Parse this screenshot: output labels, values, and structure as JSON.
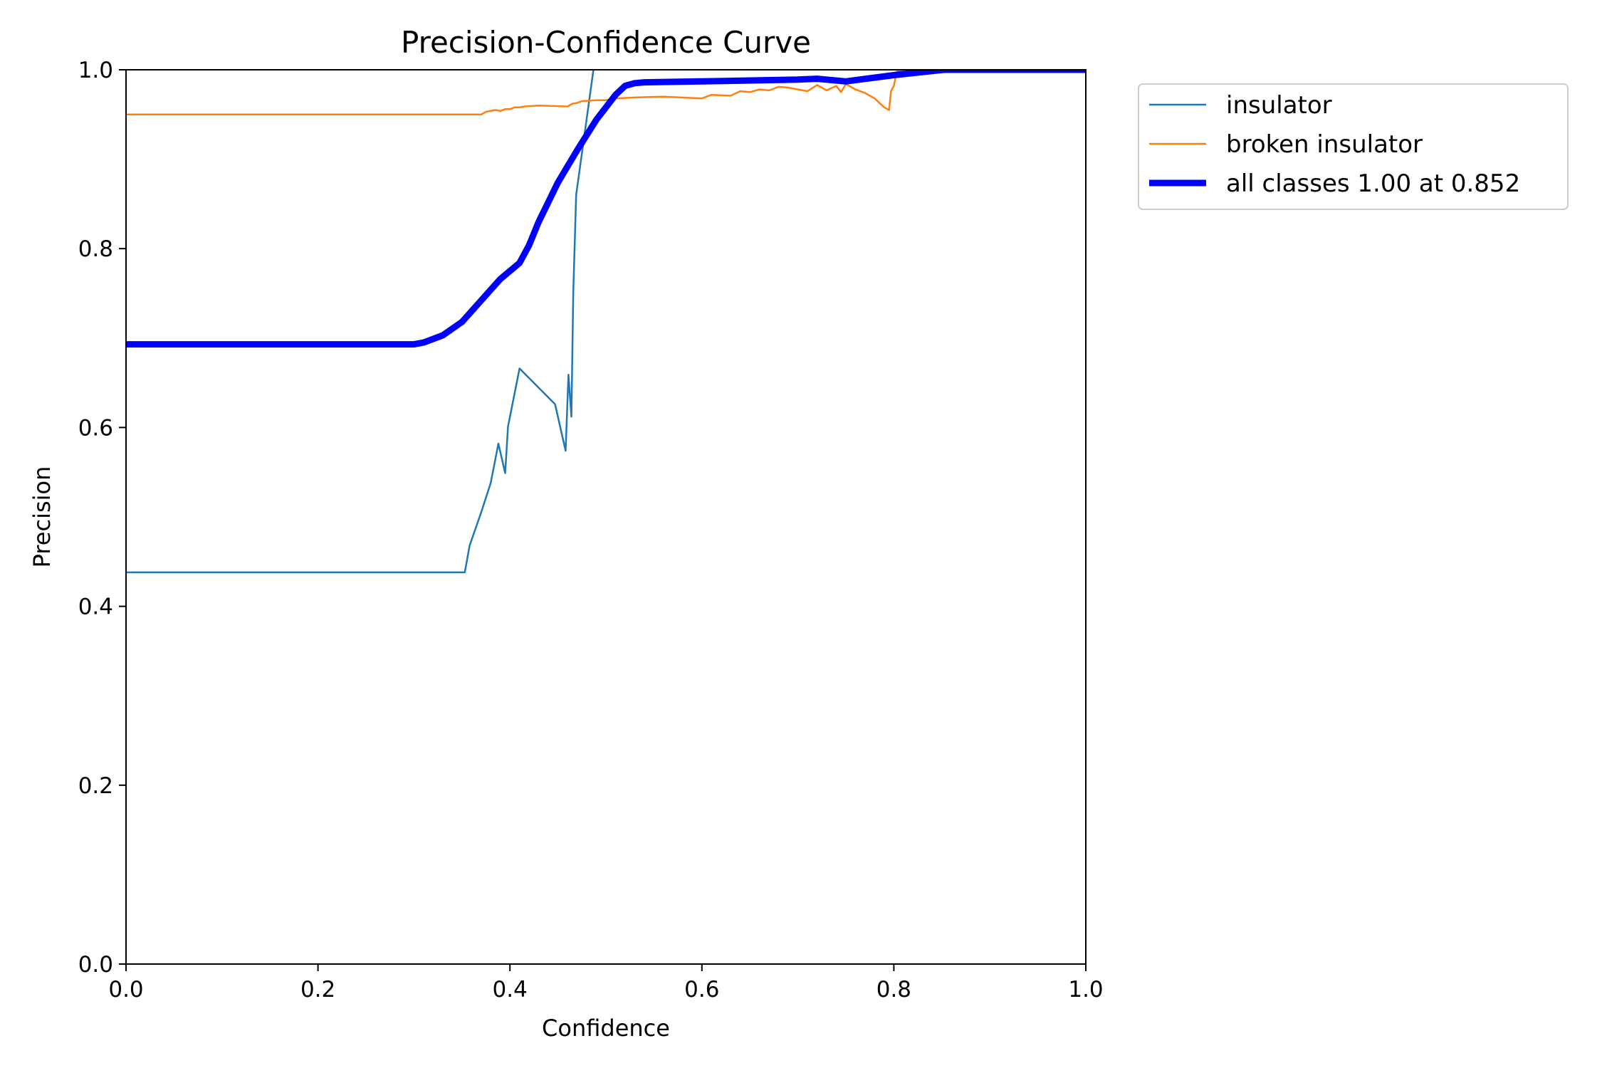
{
  "chart_data": {
    "type": "line",
    "title": "Precision-Confidence Curve",
    "xlabel": "Confidence",
    "ylabel": "Precision",
    "xlim": [
      0,
      1
    ],
    "ylim": [
      0,
      1
    ],
    "xticks": [
      "0.0",
      "0.2",
      "0.4",
      "0.6",
      "0.8",
      "1.0"
    ],
    "yticks": [
      "0.0",
      "0.2",
      "0.4",
      "0.6",
      "0.8",
      "1.0"
    ],
    "grid": false,
    "legend_position": "outside top-right",
    "series": [
      {
        "name": "insulator",
        "color": "#1f77b4",
        "style": "thin",
        "x": [
          0.0,
          0.353,
          0.358,
          0.37,
          0.38,
          0.388,
          0.395,
          0.398,
          0.41,
          0.447,
          0.458,
          0.461,
          0.464,
          0.466,
          0.469,
          0.487
        ],
        "y": [
          0.438,
          0.438,
          0.468,
          0.505,
          0.538,
          0.582,
          0.549,
          0.601,
          0.666,
          0.626,
          0.574,
          0.659,
          0.612,
          0.752,
          0.86,
          1.0
        ]
      },
      {
        "name": "broken insulator",
        "color": "#ff7f0e",
        "style": "thin",
        "x": [
          0.0,
          0.37,
          0.375,
          0.385,
          0.39,
          0.395,
          0.4,
          0.405,
          0.41,
          0.415,
          0.43,
          0.46,
          0.465,
          0.47,
          0.475,
          0.49,
          0.5,
          0.51,
          0.53,
          0.56,
          0.6,
          0.61,
          0.63,
          0.64,
          0.65,
          0.66,
          0.67,
          0.68,
          0.69,
          0.7,
          0.71,
          0.72,
          0.73,
          0.74,
          0.745,
          0.75,
          0.76,
          0.77,
          0.78,
          0.79,
          0.795,
          0.797,
          0.8,
          0.803,
          0.81,
          0.85,
          1.0
        ],
        "y": [
          0.95,
          0.95,
          0.953,
          0.955,
          0.954,
          0.956,
          0.956,
          0.958,
          0.958,
          0.959,
          0.96,
          0.959,
          0.962,
          0.963,
          0.965,
          0.966,
          0.966,
          0.968,
          0.969,
          0.97,
          0.968,
          0.972,
          0.971,
          0.976,
          0.975,
          0.978,
          0.977,
          0.981,
          0.98,
          0.978,
          0.976,
          0.983,
          0.977,
          0.982,
          0.975,
          0.984,
          0.978,
          0.974,
          0.968,
          0.958,
          0.955,
          0.976,
          0.982,
          0.998,
          0.999,
          1.0,
          1.0
        ]
      },
      {
        "name": "all classes 1.00 at 0.852",
        "color": "#0000ff",
        "style": "thick",
        "x": [
          0.0,
          0.3,
          0.31,
          0.33,
          0.35,
          0.37,
          0.39,
          0.41,
          0.42,
          0.43,
          0.45,
          0.47,
          0.49,
          0.51,
          0.52,
          0.53,
          0.54,
          0.6,
          0.7,
          0.72,
          0.75,
          0.8,
          0.852,
          1.0
        ],
        "y": [
          0.693,
          0.693,
          0.695,
          0.703,
          0.718,
          0.742,
          0.766,
          0.784,
          0.804,
          0.83,
          0.874,
          0.91,
          0.944,
          0.972,
          0.982,
          0.985,
          0.986,
          0.987,
          0.989,
          0.99,
          0.987,
          0.994,
          1.0,
          1.0
        ]
      }
    ]
  }
}
